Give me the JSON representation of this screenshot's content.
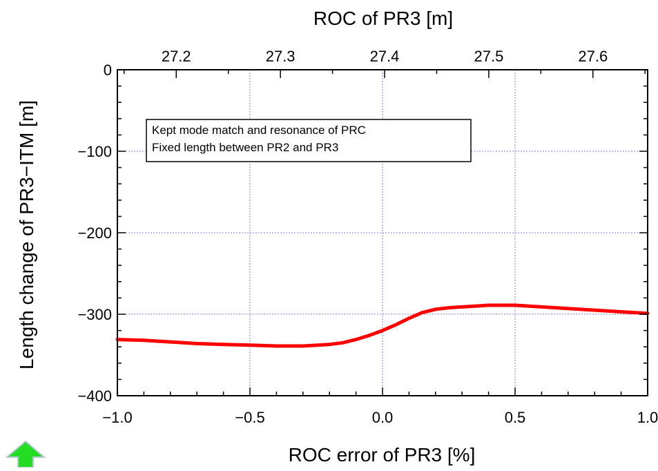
{
  "chart_data": {
    "type": "line",
    "title": "",
    "xlabel": "ROC error of PR3 [%]",
    "ylabel": "Length change of PR3−ITM [m]",
    "x2label": "ROC of PR3 [m]",
    "xlim": [
      -1.0,
      1.0
    ],
    "ylim": [
      -400,
      0
    ],
    "x2lim": [
      27.1435,
      27.6525
    ],
    "xticks": [
      "−1.0",
      "−0.5",
      "0.0",
      "0.5",
      "1.0"
    ],
    "xtick_values": [
      -1.0,
      -0.5,
      0.0,
      0.5,
      1.0
    ],
    "x2ticks": [
      "27.2",
      "27.3",
      "27.4",
      "27.5",
      "27.6"
    ],
    "x2tick_values": [
      27.2,
      27.3,
      27.4,
      27.5,
      27.6
    ],
    "yticks": [
      "0",
      "−100",
      "−200",
      "−300",
      "−400"
    ],
    "ytick_values": [
      0,
      -100,
      -200,
      -300,
      -400
    ],
    "grid": true,
    "annotation": [
      "Kept mode match and resonance of PRC",
      "Fixed length between PR2 and PR3"
    ],
    "series": [
      {
        "color": "#ff0000",
        "x": [
          -1.0,
          -0.9,
          -0.8,
          -0.7,
          -0.6,
          -0.5,
          -0.4,
          -0.3,
          -0.2,
          -0.15,
          -0.1,
          -0.05,
          0.0,
          0.05,
          0.1,
          0.15,
          0.2,
          0.25,
          0.3,
          0.35,
          0.4,
          0.45,
          0.5,
          0.6,
          0.7,
          0.8,
          0.9,
          1.0
        ],
        "y": [
          -331,
          -332,
          -334,
          -336,
          -337,
          -338,
          -339,
          -339,
          -337,
          -335,
          -331,
          -326,
          -320,
          -313,
          -305,
          -298,
          -294,
          -292,
          -291,
          -290,
          -289,
          -289,
          -289,
          -291,
          -293,
          -295,
          -297,
          -299
        ]
      }
    ]
  },
  "nav": {
    "up_color": "#22dd22",
    "up_icon": "up-arrow-icon"
  }
}
